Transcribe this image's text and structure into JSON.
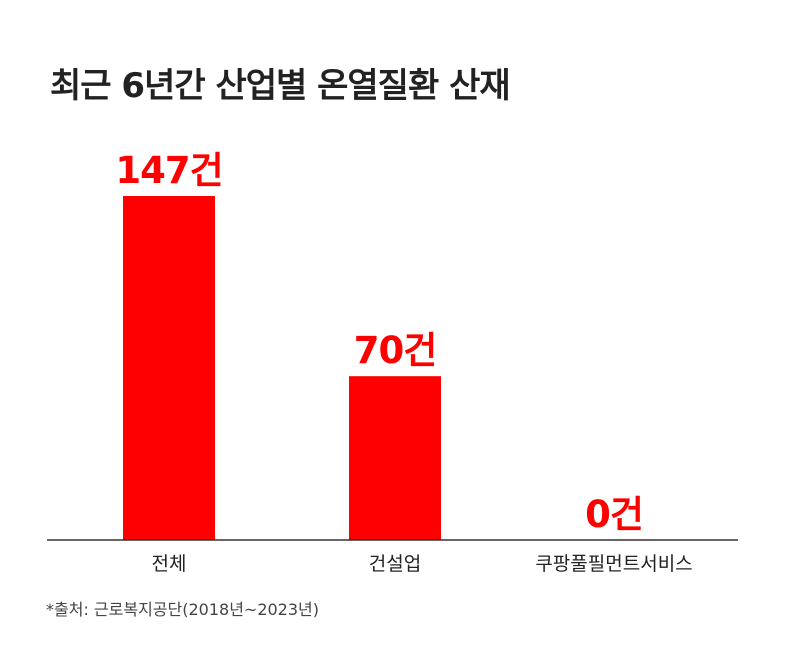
{
  "chart_data": {
    "type": "bar",
    "title": "최근 6년간 산업별 온열질환 산재",
    "categories": [
      "전체",
      "건설업",
      "쿠팡풀필먼트서비스"
    ],
    "values": [
      147,
      70,
      0
    ],
    "value_labels": [
      "147건",
      "70건",
      "0건"
    ],
    "unit": "건",
    "xlabel": "",
    "ylabel": "",
    "ylim": [
      0,
      147
    ],
    "grid": false,
    "legend": "none",
    "bar_color": "#ff0000",
    "value_label_color": "#ff0000",
    "axis_color": "#333333"
  },
  "source_note": "*출처: 근로복지공단(2018년~2023년)"
}
